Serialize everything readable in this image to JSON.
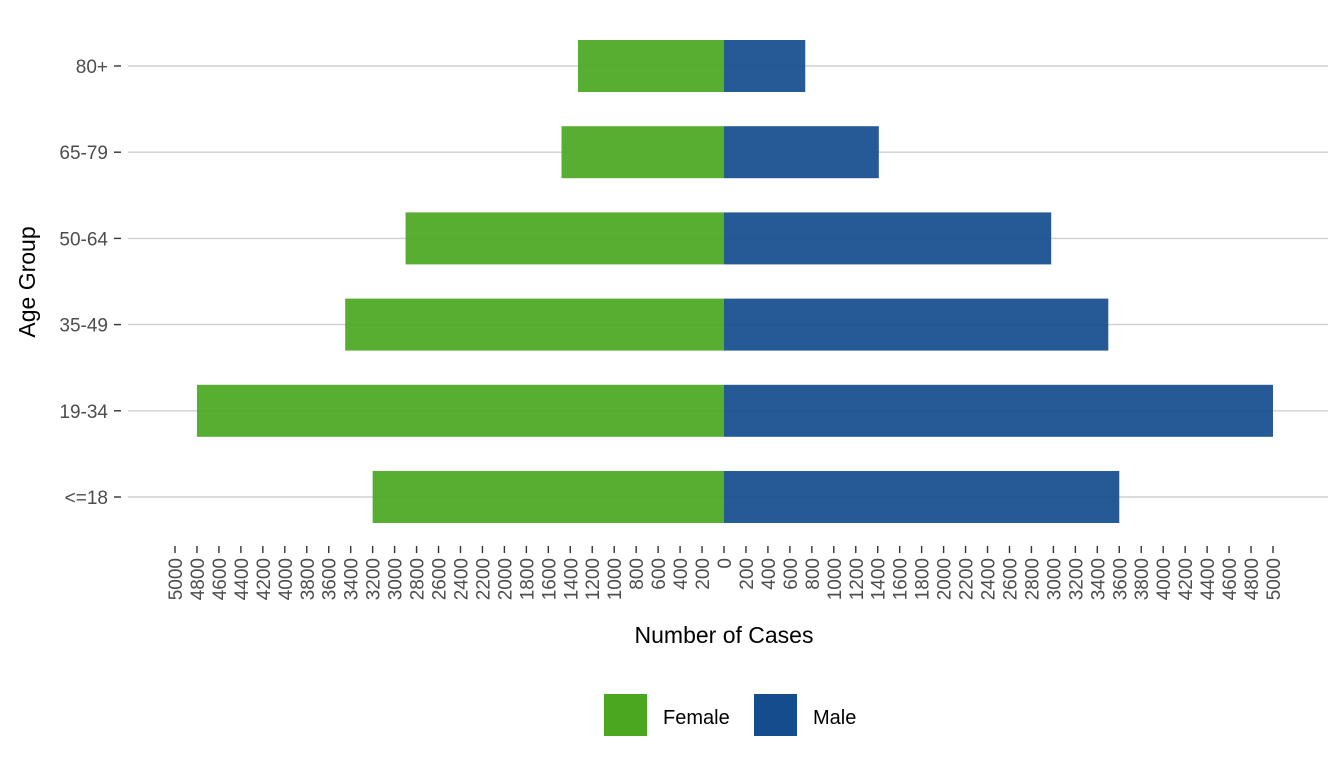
{
  "chart_data": {
    "type": "bar",
    "orientation": "horizontal-population-pyramid",
    "title": "",
    "xlabel": "Number of Cases",
    "ylabel": "Age Group",
    "categories": [
      "<=18",
      "19-34",
      "35-49",
      "50-64",
      "65-79",
      "80+"
    ],
    "series": [
      {
        "name": "Female",
        "color": "#4AA71F",
        "values": [
          3200,
          4800,
          3450,
          2900,
          1480,
          1330
        ]
      },
      {
        "name": "Male",
        "color": "#144C8D",
        "values": [
          3600,
          5000,
          3500,
          2980,
          1410,
          740
        ]
      }
    ],
    "xlim": [
      -5000,
      5000
    ],
    "x_ticks": [
      -5000,
      -4800,
      -4600,
      -4400,
      -4200,
      -4000,
      -3800,
      -3600,
      -3400,
      -3200,
      -3000,
      -2800,
      -2600,
      -2400,
      -2200,
      -2000,
      -1800,
      -1600,
      -1400,
      -1200,
      -1000,
      -800,
      -600,
      -400,
      -200,
      0,
      200,
      400,
      600,
      800,
      1000,
      1200,
      1400,
      1600,
      1800,
      2000,
      2200,
      2400,
      2600,
      2800,
      3000,
      3200,
      3400,
      3600,
      3800,
      4000,
      4200,
      4400,
      4600,
      4800,
      5000
    ],
    "x_tick_labels_absolute": true,
    "grid": "horizontal-major",
    "legend_position": "bottom"
  }
}
